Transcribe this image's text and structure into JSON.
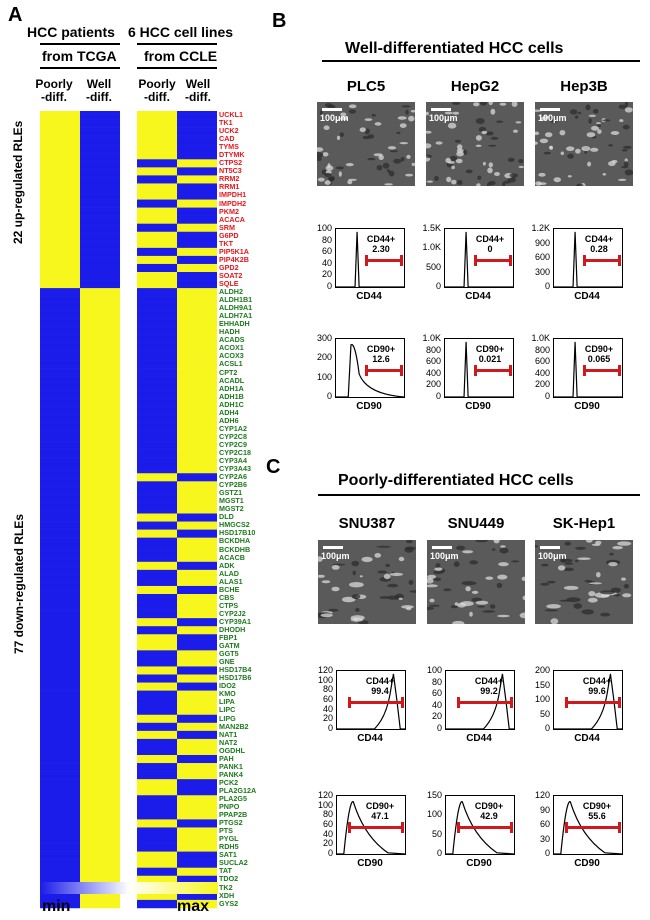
{
  "panel_a": {
    "letter": "A",
    "group1_title": "HCC patients",
    "group1_subtitle": "from TCGA",
    "group2_title": "6 HCC cell lines",
    "group2_subtitle": "from CCLE",
    "col_poorly_1": "Poorly",
    "col_poorly_2": "-diff.",
    "col_well_1": "Well",
    "col_well_2": "-diff.",
    "up_label": "22 up-regulated RLEs",
    "down_label": "77 down-regulated RLEs",
    "colorbar_min": "min",
    "colorbar_max": "max",
    "colors": {
      "low": "#1b1bea",
      "high": "#f7f71e",
      "up_gene": "#e8151b",
      "down_gene": "#1d7a1d"
    },
    "up_genes": [
      "UCKL1",
      "TK1",
      "UCK2",
      "CAD",
      "TYMS",
      "DTYMK",
      "CTPS2",
      "NT5C3",
      "RRM2",
      "RRM1",
      "IMPDH1",
      "IMPDH2",
      "PKM2",
      "ACACA",
      "SRM",
      "G6PD",
      "TKT",
      "PIP5K1A",
      "PIP4K2B",
      "GPD2",
      "SOAT2",
      "SQLE"
    ],
    "down_genes": [
      "ALDH2",
      "ALDH1B1",
      "ALDH9A1",
      "ALDH7A1",
      "EHHADH",
      "HADH",
      "ACADS",
      "ACOX1",
      "ACOX3",
      "ACSL1",
      "CPT2",
      "ACADL",
      "ADH1A",
      "ADH1B",
      "ADH1C",
      "ADH4",
      "ADH6",
      "CYP1A2",
      "CYP2C8",
      "CYP2C9",
      "CYP2C18",
      "CYP3A4",
      "CYP3A43",
      "CYP2A6",
      "CYP2B6",
      "GSTZ1",
      "MGST1",
      "MGST2",
      "DLD",
      "HMGCS2",
      "HSD17B10",
      "BCKDHA",
      "BCKDHB",
      "ACACB",
      "ADK",
      "ALAD",
      "ALAS1",
      "BCHE",
      "CBS",
      "CTPS",
      "CYP2J2",
      "CYP39A1",
      "DHODH",
      "FBP1",
      "GATM",
      "GGT5",
      "GNE",
      "HSD17B4",
      "HSD17B6",
      "IDO2",
      "KMO",
      "LIPA",
      "LIPC",
      "LIPG",
      "MAN2B2",
      "NAT1",
      "NAT2",
      "OGDHL",
      "PAH",
      "PANK1",
      "PANK4",
      "PCK2",
      "PLA2G12A",
      "PLA2G5",
      "PNPO",
      "PPAP2B",
      "PTGS2",
      "PTS",
      "PYGL",
      "RDH5",
      "SAT1",
      "SUCLA2",
      "TAT",
      "TDO2",
      "TK2",
      "XDH",
      "GYS2"
    ]
  },
  "panel_b": {
    "letter": "B",
    "title": "Well-differentiated HCC cells",
    "cells": [
      {
        "name": "PLC5",
        "scale": "100μm",
        "cd44": {
          "yticks": [
            "100",
            "80",
            "60",
            "40",
            "20",
            "0"
          ],
          "gate_name": "CD44+",
          "gate_value": "2.30",
          "xlabel": "CD44"
        },
        "cd90": {
          "yticks": [
            "300",
            "200",
            "100",
            "0"
          ],
          "gate_name": "CD90+",
          "gate_value": "12.6",
          "xlabel": "CD90"
        }
      },
      {
        "name": "HepG2",
        "scale": "100μm",
        "cd44": {
          "yticks": [
            "1.5K",
            "1.0K",
            "500",
            "0"
          ],
          "gate_name": "CD44+",
          "gate_value": "0",
          "xlabel": "CD44"
        },
        "cd90": {
          "yticks": [
            "1.0K",
            "800",
            "600",
            "400",
            "200",
            "0"
          ],
          "gate_name": "CD90+",
          "gate_value": "0.021",
          "xlabel": "CD90"
        }
      },
      {
        "name": "Hep3B",
        "scale": "100μm",
        "cd44": {
          "yticks": [
            "1.2K",
            "900",
            "600",
            "300",
            "0"
          ],
          "gate_name": "CD44+",
          "gate_value": "0.28",
          "xlabel": "CD44"
        },
        "cd90": {
          "yticks": [
            "1.0K",
            "800",
            "600",
            "400",
            "200",
            "0"
          ],
          "gate_name": "CD90+",
          "gate_value": "0.065",
          "xlabel": "CD90"
        }
      }
    ]
  },
  "panel_c": {
    "letter": "C",
    "title": "Poorly-differentiated HCC cells",
    "cells": [
      {
        "name": "SNU387",
        "scale": "100μm",
        "cd44": {
          "yticks": [
            "120",
            "100",
            "80",
            "60",
            "40",
            "20",
            "0"
          ],
          "gate_name": "CD44+",
          "gate_value": "99.4",
          "xlabel": "CD44"
        },
        "cd90": {
          "yticks": [
            "120",
            "100",
            "80",
            "60",
            "40",
            "20",
            "0"
          ],
          "gate_name": "CD90+",
          "gate_value": "47.1",
          "xlabel": "CD90"
        }
      },
      {
        "name": "SNU449",
        "scale": "100μm",
        "cd44": {
          "yticks": [
            "100",
            "80",
            "60",
            "40",
            "20",
            "0"
          ],
          "gate_name": "CD44+",
          "gate_value": "99.2",
          "xlabel": "CD44"
        },
        "cd90": {
          "yticks": [
            "150",
            "100",
            "50",
            "0"
          ],
          "gate_name": "CD90+",
          "gate_value": "42.9",
          "xlabel": "CD90"
        }
      },
      {
        "name": "SK-Hep1",
        "scale": "100μm",
        "cd44": {
          "yticks": [
            "200",
            "150",
            "100",
            "50",
            "0"
          ],
          "gate_name": "CD44+",
          "gate_value": "99.6",
          "xlabel": "CD44"
        },
        "cd90": {
          "yticks": [
            "120",
            "90",
            "60",
            "30",
            "0"
          ],
          "gate_name": "CD90+",
          "gate_value": "55.6",
          "xlabel": "CD90"
        }
      }
    ]
  }
}
